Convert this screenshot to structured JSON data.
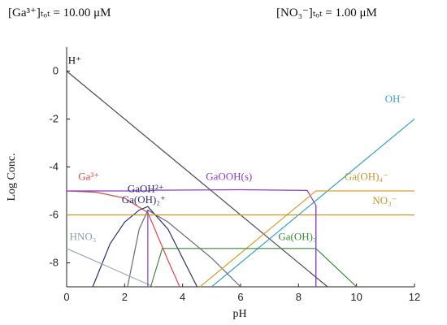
{
  "header": {
    "left": "[Ga³⁺]ₜₒₜ =  10.00 μM",
    "right": "[NO₃⁻]ₜₒₜ =  1.00 μM"
  },
  "chart_data": {
    "type": "line",
    "xlabel": "pH",
    "ylabel": "Log Conc.",
    "xlim": [
      0,
      12
    ],
    "ylim": [
      -9,
      1
    ],
    "xticks": [
      0,
      2,
      4,
      6,
      8,
      10,
      12
    ],
    "yticks": [
      0,
      -2,
      -4,
      -6,
      -8
    ],
    "grid": false,
    "series": [
      {
        "name": "H⁺",
        "color": "#4a4a55",
        "x": [
          0,
          9
        ],
        "y": [
          0,
          -9
        ]
      },
      {
        "name": "OH⁻",
        "color": "#3aa3c8",
        "x": [
          5,
          12
        ],
        "y": [
          -9,
          -2
        ]
      },
      {
        "name": "Ga³⁺",
        "color": "#e04545",
        "x": [
          0,
          1,
          2,
          2.8,
          3.5,
          3.9
        ],
        "y": [
          -5,
          -5.05,
          -5.3,
          -5.9,
          -7.9,
          -9
        ]
      },
      {
        "name": "GaOH²⁺",
        "color": "#2e2e6e",
        "x": [
          0.9,
          1.5,
          2,
          2.5,
          2.8,
          3.5,
          4.5
        ],
        "y": [
          -9,
          -7.2,
          -6.3,
          -5.8,
          -5.65,
          -6.6,
          -9
        ]
      },
      {
        "name": "Ga(OH)₂⁺",
        "color": "#6a6a75",
        "x": [
          2.1,
          2.5,
          2.8,
          3.5,
          5,
          6
        ],
        "y": [
          -9,
          -6.6,
          -5.8,
          -6.3,
          -7.8,
          -9
        ]
      },
      {
        "name": "GaOOH(s)",
        "color": "#8a3ec8",
        "x": [
          0,
          2.8,
          3,
          6,
          8.3,
          8.6,
          8.6
        ],
        "y": [
          -5,
          -5,
          -4.97,
          -4.95,
          -4.98,
          -5.6,
          -9
        ]
      },
      {
        "name": "Ga(OH)₄⁻",
        "color": "#d4a030",
        "x": [
          4.6,
          8.6,
          12
        ],
        "y": [
          -9,
          -5,
          -5
        ]
      },
      {
        "name": "NO₃⁻",
        "color": "#c4962a",
        "x": [
          0,
          12
        ],
        "y": [
          -6,
          -6
        ]
      },
      {
        "name": "HNO₃",
        "color": "#a0a8c0",
        "x": [
          0,
          3
        ],
        "y": [
          -7.4,
          -9
        ]
      },
      {
        "name": "Ga(OH)₃",
        "color": "#3a8a3a",
        "x": [
          2.9,
          3.3,
          8.6,
          9.3,
          10
        ],
        "y": [
          -9,
          -7.4,
          -7.4,
          -8.2,
          -9
        ]
      }
    ],
    "labels": [
      {
        "text": "H⁺",
        "x": 0.05,
        "y": 0.3,
        "color": "#111111"
      },
      {
        "text": "OH⁻",
        "x": 11.7,
        "y": -1.3,
        "color": "#3aa3c8"
      },
      {
        "text": "Ga³⁺",
        "x": 0.4,
        "y": -4.55,
        "color": "#e04545"
      },
      {
        "text": "GaOH²⁺",
        "x": 2.1,
        "y": -5.05,
        "color": "#2e2e6e"
      },
      {
        "text": "Ga(OH)₂⁺",
        "x": 1.9,
        "y": -5.5,
        "color": "#2e2e6e"
      },
      {
        "text": "GaOOH(s)",
        "x": 4.8,
        "y": -4.55,
        "color": "#8a3ec8"
      },
      {
        "text": "Ga(OH)₄⁻",
        "x": 11.1,
        "y": -4.55,
        "color": "#c4962a"
      },
      {
        "text": "NO₃⁻",
        "x": 11.4,
        "y": -5.55,
        "color": "#c4962a"
      },
      {
        "text": "HNO₃",
        "x": 0.1,
        "y": -7.05,
        "color": "#9098b0"
      },
      {
        "text": "Ga(OH)₃",
        "x": 7.3,
        "y": -7.05,
        "color": "#3a8a3a"
      }
    ],
    "vlines": [
      {
        "x": 2.8,
        "y0": -9,
        "y1": -5.8,
        "color": "#8a3ec8"
      },
      {
        "x": 8.6,
        "y0": -9,
        "y1": -5.6,
        "color": "#8a3ec8"
      }
    ]
  }
}
